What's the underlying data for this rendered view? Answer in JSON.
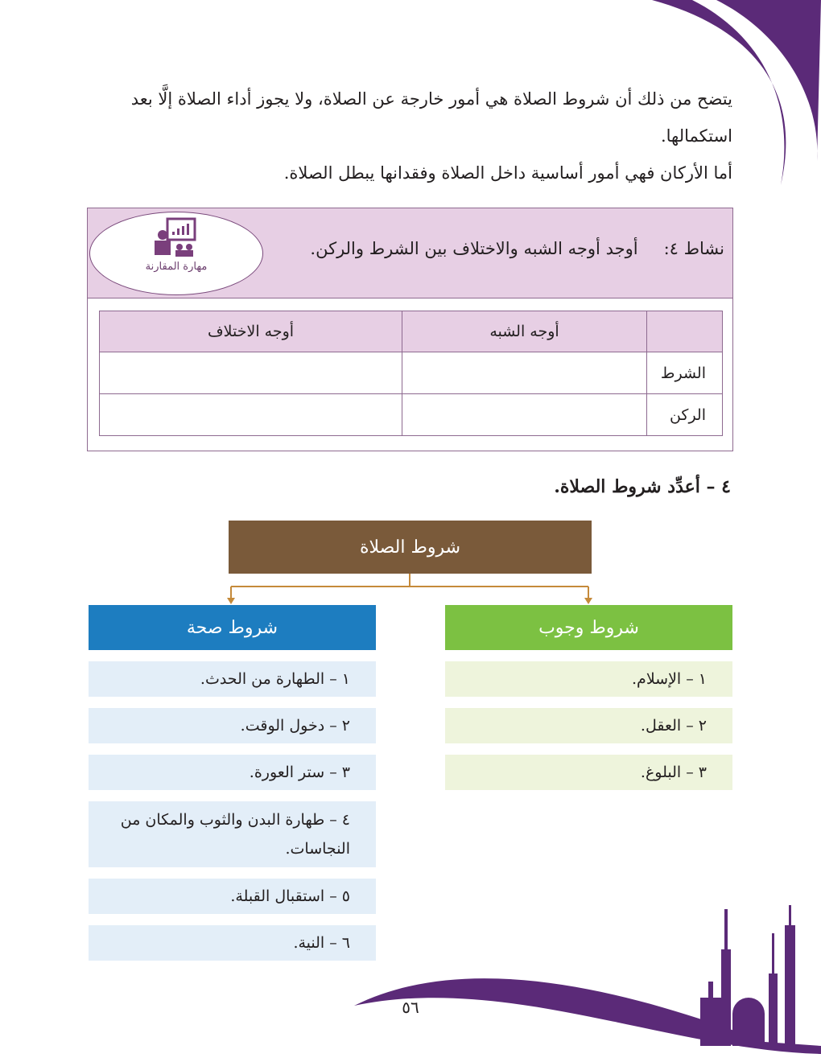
{
  "intro": {
    "line1": "يتضح من ذلك أن شروط الصلاة هي أمور خارجة عن الصلاة، ولا يجوز أداء الصلاة إلَّا بعد",
    "line2": "استكمالها.",
    "line3": "أما الأركان فهي أمور أساسية داخل الصلاة وفقدانها يبطل الصلاة."
  },
  "activity": {
    "number": "نشاط ٤:",
    "instruction": "أوجد أوجه الشبه والاختلاف بين الشرط والركن.",
    "skill_label": "مهارة المقارنة",
    "skill_icon": "presenter-chart-icon",
    "table": {
      "headers": [
        "",
        "أوجه الشبه",
        "أوجه الاختلاف"
      ],
      "rows": [
        [
          "الشرط",
          "",
          ""
        ],
        [
          "الركن",
          "",
          ""
        ]
      ]
    }
  },
  "section_heading": "٤ – أعدِّد شروط الصلاة.",
  "diagram": {
    "root": "شروط الصلاة",
    "validity": {
      "title": "شروط صحة",
      "items": [
        "١ – الطهارة من الحدث.",
        "٢ – دخول الوقت.",
        "٣ – ستر العورة.",
        "٤ – طهارة البدن والثوب والمكان من النجاسات.",
        "٥ – استقبال القبلة.",
        "٦ – النية."
      ]
    },
    "obligation": {
      "title": "شروط وجوب",
      "items": [
        "١ – الإسلام.",
        "٢ – العقل.",
        "٣ – البلوغ."
      ]
    }
  },
  "page_number": "٥٦",
  "colors": {
    "purple": "#5b2a78",
    "root": "#7a5a3a",
    "validity": "#1d7dc0",
    "obligation": "#7cc142"
  }
}
